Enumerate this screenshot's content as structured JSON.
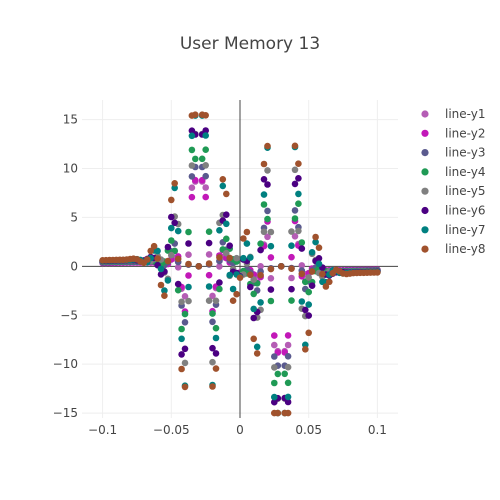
{
  "chart_data": {
    "type": "scatter",
    "title": "User Memory 13",
    "xlabel": "",
    "ylabel": "",
    "xlim": [
      -0.115,
      0.115
    ],
    "ylim": [
      -15.5,
      17
    ],
    "x_ticks": [
      -0.1,
      -0.05,
      0,
      0.05,
      0.1
    ],
    "x_tick_labels": [
      "−0.1",
      "−0.05",
      "0",
      "0.05",
      "0.1"
    ],
    "y_ticks": [
      -15,
      -10,
      -5,
      0,
      5,
      10,
      15
    ],
    "y_tick_labels": [
      "−15",
      "−10",
      "−5",
      "0",
      "5",
      "10",
      "15"
    ],
    "grid": true,
    "zero_lines": true,
    "legend_position": "top-right",
    "x_range": [
      -0.1,
      0.1
    ],
    "x_step": 0.0025,
    "series": [
      {
        "name": "line-y1",
        "color": "#b55db5",
        "width": 0.0075,
        "amp": 0.9,
        "osc": 0.95
      },
      {
        "name": "line-y2",
        "color": "#c218b8",
        "width": 0.0085,
        "amp": 0.85,
        "osc": 1.05
      },
      {
        "name": "line-y3",
        "color": "#5a5a8e",
        "width": 0.0095,
        "amp": 1.0,
        "osc": 1.0
      },
      {
        "name": "line-y4",
        "color": "#1f9a55",
        "width": 0.0105,
        "amp": 1.15,
        "osc": 0.9
      },
      {
        "name": "line-y5",
        "color": "#808080",
        "width": 0.0115,
        "amp": 1.25,
        "osc": 1.1
      },
      {
        "name": "line-y6",
        "color": "#4b0082",
        "width": 0.0125,
        "amp": 1.35,
        "osc": 0.95
      },
      {
        "name": "line-y7",
        "color": "#008080",
        "width": 0.0135,
        "amp": 1.45,
        "osc": 1.05
      },
      {
        "name": "line-y8",
        "color": "#a0522d",
        "width": 0.0145,
        "amp": 1.55,
        "osc": 1.0
      }
    ]
  }
}
